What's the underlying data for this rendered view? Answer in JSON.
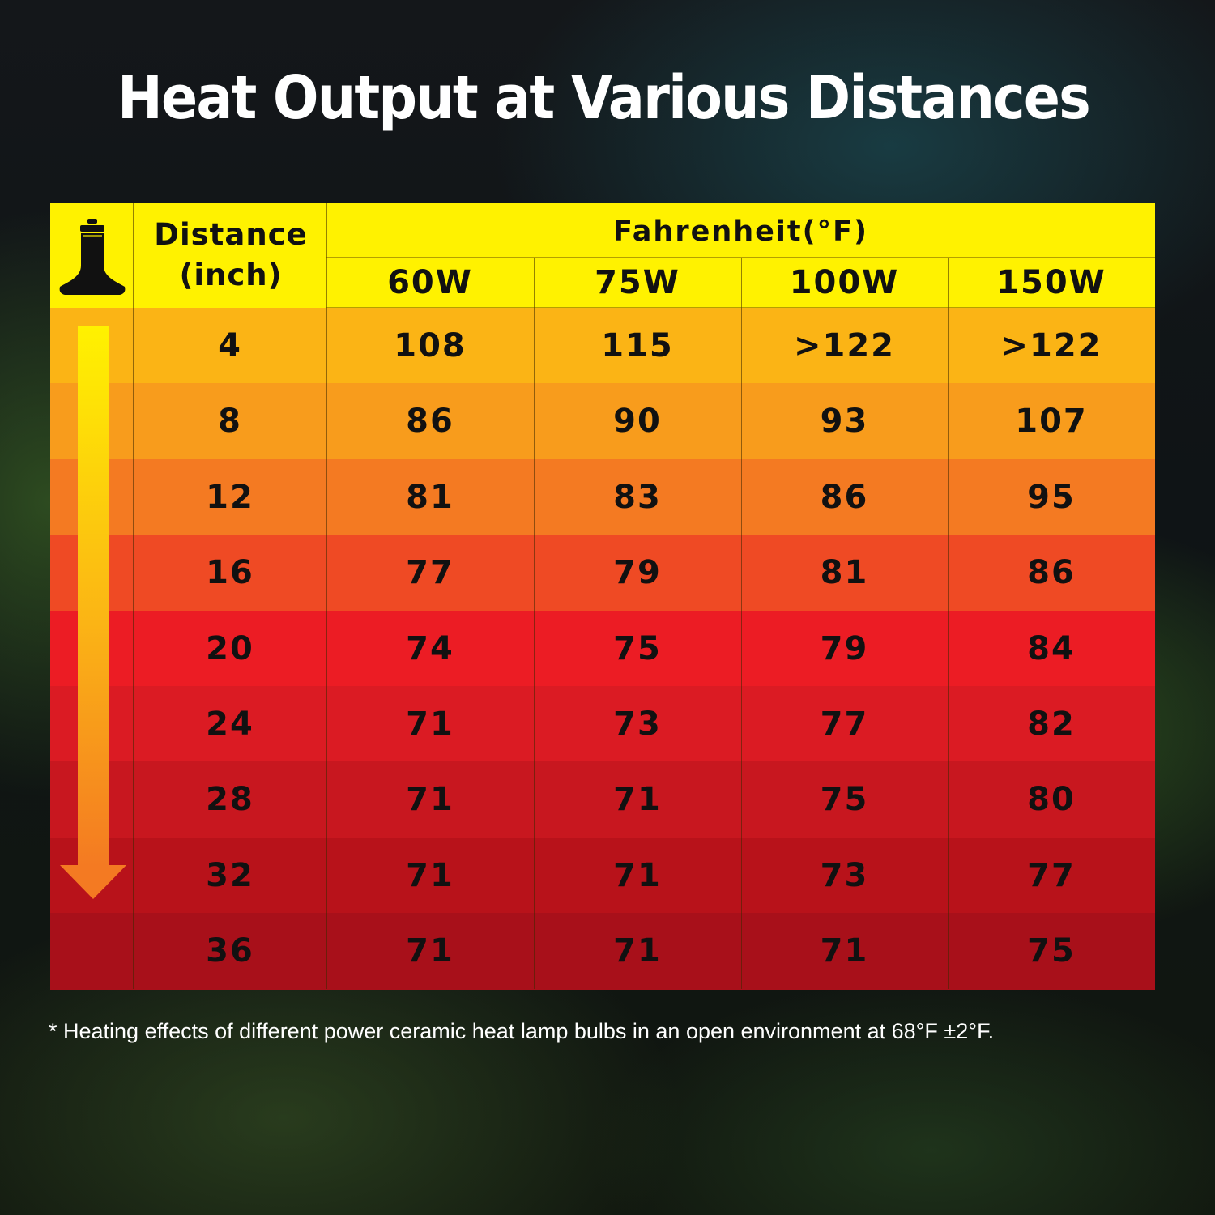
{
  "title": "Heat Output at Various Distances",
  "footnote": "* Heating effects of different power ceramic heat lamp bulbs in an open environment at 68°F ±2°F.",
  "colors": {
    "header": "#fff200",
    "rows": [
      "#fbb415",
      "#f89c1c",
      "#f47a22",
      "#ef4a24",
      "#ec1c24",
      "#db1b23",
      "#c8171f",
      "#b8121a",
      "#a8101a"
    ]
  },
  "icons": {
    "bulb": "heat-lamp-bulb-icon",
    "arrow": "down-arrow-icon"
  },
  "chart_data": {
    "type": "table",
    "title": "Heat Output at Various Distances",
    "row_header": "Distance (inch)",
    "row_header_lines": [
      "Distance",
      "(inch)"
    ],
    "group_header": "Fahrenheit(°F)",
    "columns": [
      "60W",
      "75W",
      "100W",
      "150W"
    ],
    "rows": [
      {
        "distance": "4",
        "values": [
          "108",
          "115",
          ">122",
          ">122"
        ]
      },
      {
        "distance": "8",
        "values": [
          "86",
          "90",
          "93",
          "107"
        ]
      },
      {
        "distance": "12",
        "values": [
          "81",
          "83",
          "86",
          "95"
        ]
      },
      {
        "distance": "16",
        "values": [
          "77",
          "79",
          "81",
          "86"
        ]
      },
      {
        "distance": "20",
        "values": [
          "74",
          "75",
          "79",
          "84"
        ]
      },
      {
        "distance": "24",
        "values": [
          "71",
          "73",
          "77",
          "82"
        ]
      },
      {
        "distance": "28",
        "values": [
          "71",
          "71",
          "75",
          "80"
        ]
      },
      {
        "distance": "32",
        "values": [
          "71",
          "71",
          "73",
          "77"
        ]
      },
      {
        "distance": "36",
        "values": [
          "71",
          "71",
          "71",
          "75"
        ]
      }
    ]
  }
}
